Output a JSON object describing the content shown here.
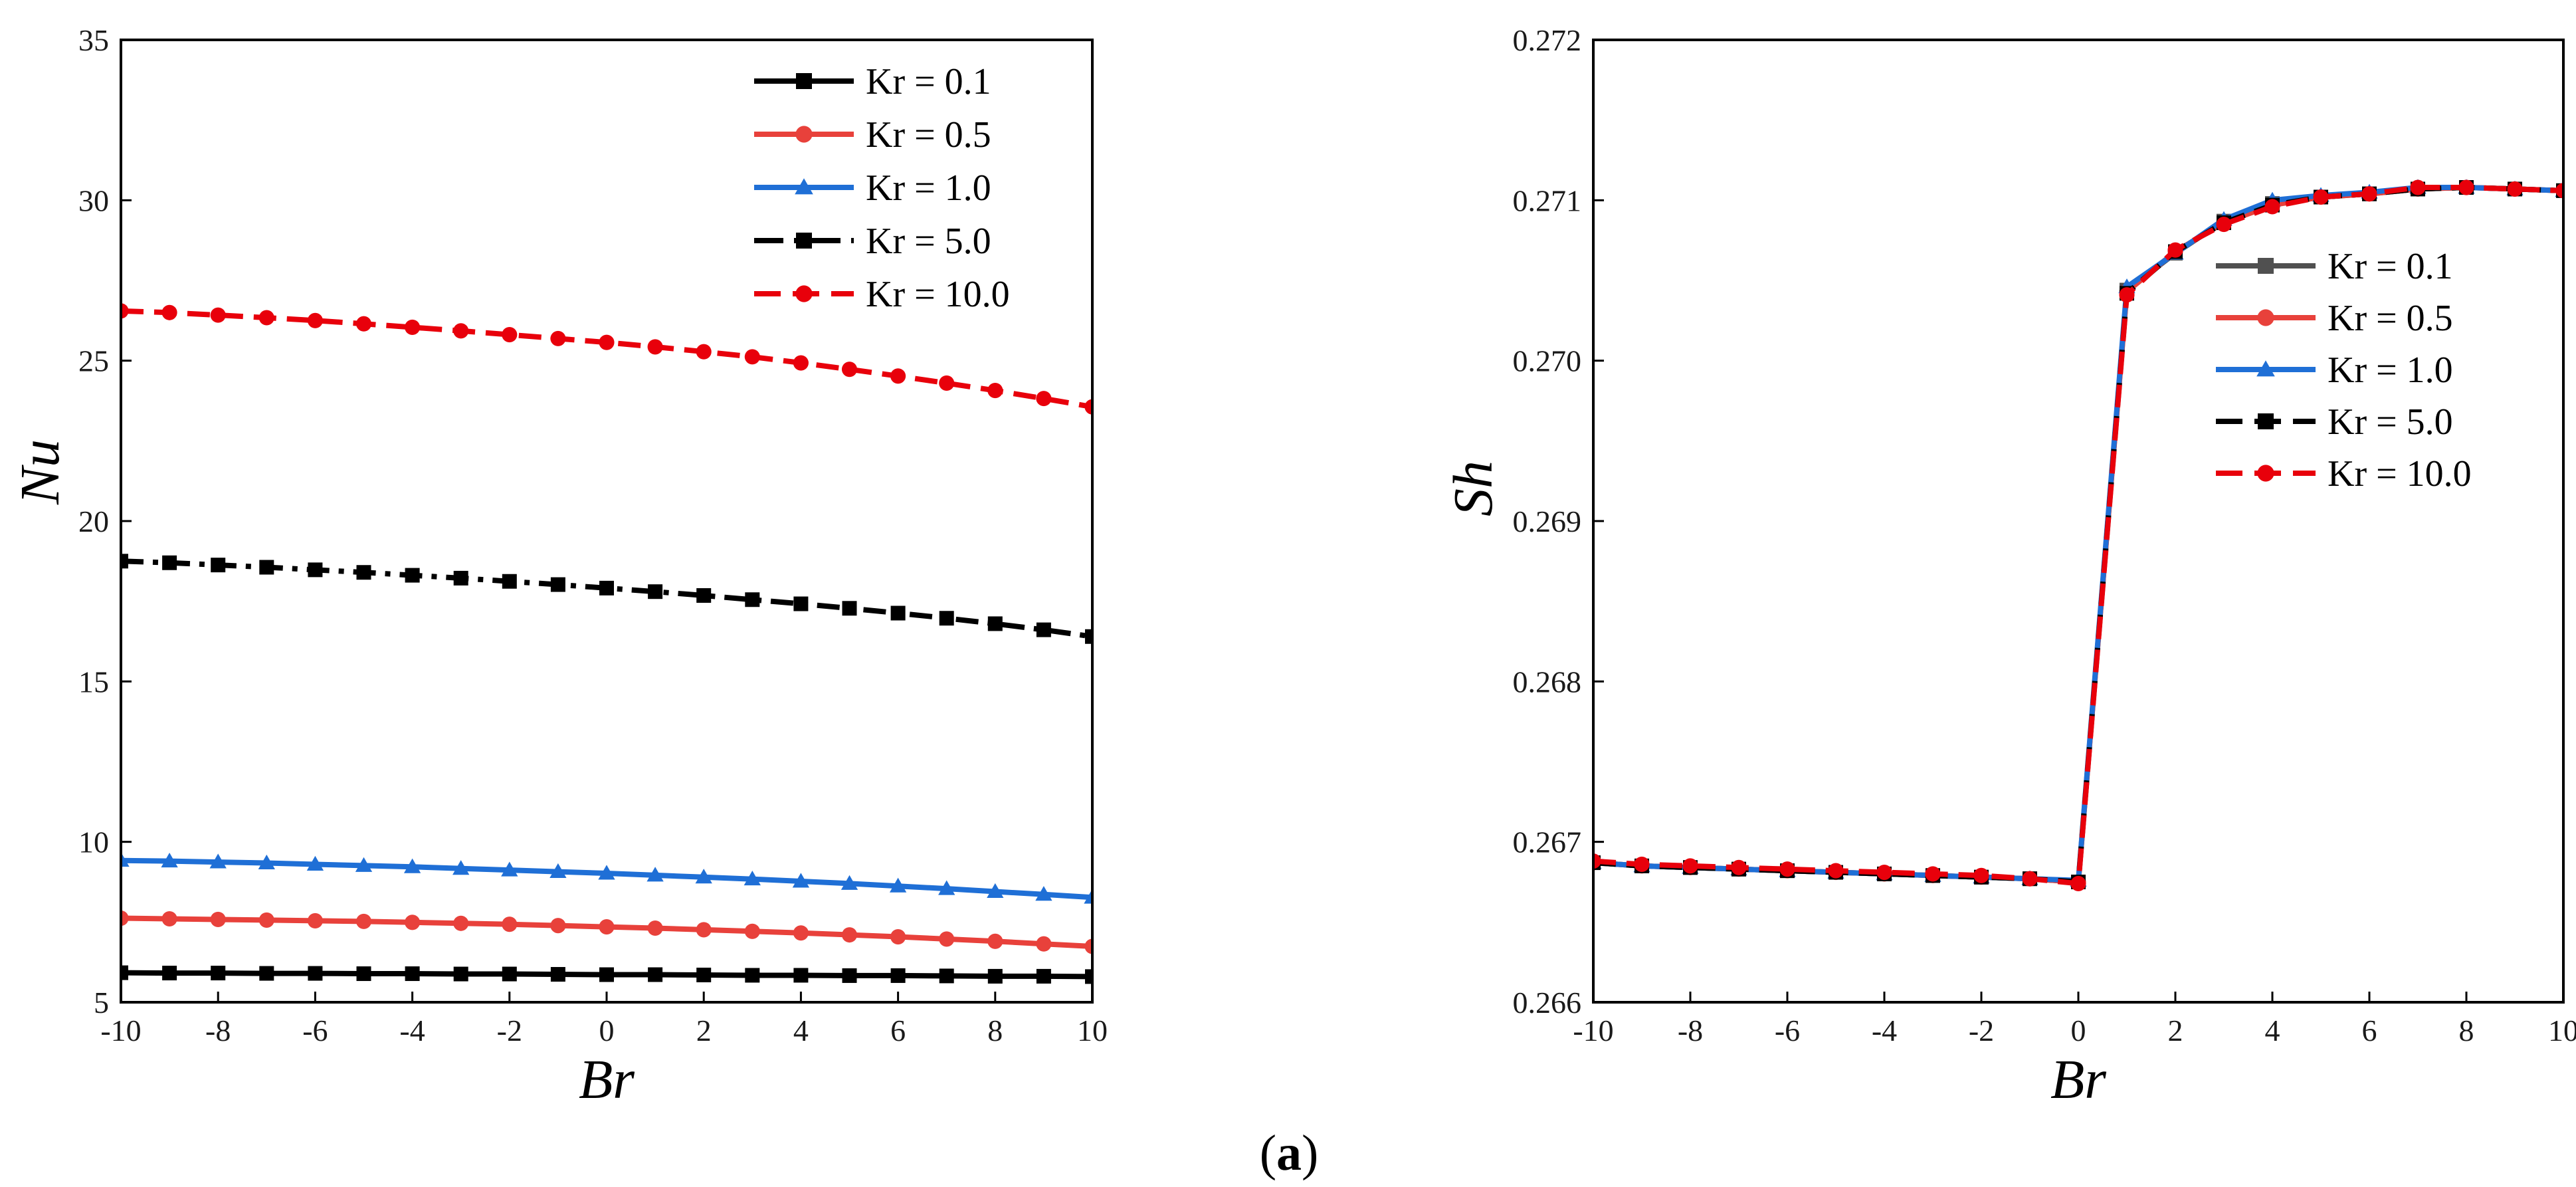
{
  "chart_data": [
    {
      "type": "line",
      "title": "",
      "xlabel": "Br",
      "ylabel": "Nu",
      "xlim": [
        -10,
        10
      ],
      "ylim": [
        5,
        35
      ],
      "xticks": [
        "-10",
        "-8",
        "-6",
        "-4",
        "-2",
        "0",
        "2",
        "4",
        "6",
        "8",
        "10"
      ],
      "yticks": [
        "5",
        "10",
        "15",
        "20",
        "25",
        "30",
        "35"
      ],
      "grid": false,
      "legend_position": "top-right",
      "x": [
        -10,
        -9,
        -8,
        -7,
        -6,
        -5,
        -4,
        -3,
        -2,
        -1,
        0,
        1,
        2,
        3,
        4,
        5,
        6,
        7,
        8,
        9,
        10
      ],
      "series": [
        {
          "name": "Kr = 0.1",
          "color": "#000000",
          "marker": "square",
          "dash": "solid",
          "values": [
            5.92,
            5.91,
            5.91,
            5.9,
            5.9,
            5.89,
            5.89,
            5.88,
            5.88,
            5.87,
            5.86,
            5.86,
            5.85,
            5.84,
            5.84,
            5.83,
            5.83,
            5.82,
            5.81,
            5.81,
            5.8
          ]
        },
        {
          "name": "Kr = 0.5",
          "color": "#e8413b",
          "marker": "circle",
          "dash": "solid",
          "values": [
            7.62,
            7.6,
            7.58,
            7.56,
            7.54,
            7.52,
            7.49,
            7.46,
            7.43,
            7.39,
            7.35,
            7.31,
            7.26,
            7.21,
            7.16,
            7.1,
            7.04,
            6.97,
            6.9,
            6.82,
            6.74
          ]
        },
        {
          "name": "Kr = 1.0",
          "color": "#1f6fd6",
          "marker": "triangle",
          "dash": "solid",
          "values": [
            9.42,
            9.4,
            9.37,
            9.34,
            9.3,
            9.26,
            9.22,
            9.17,
            9.12,
            9.07,
            9.02,
            8.96,
            8.9,
            8.84,
            8.77,
            8.7,
            8.62,
            8.54,
            8.45,
            8.36,
            8.27
          ]
        },
        {
          "name": "Kr = 5.0",
          "color": "#000000",
          "marker": "square",
          "dash": "dashdot",
          "values": [
            18.75,
            18.7,
            18.63,
            18.56,
            18.48,
            18.4,
            18.31,
            18.22,
            18.12,
            18.02,
            17.91,
            17.8,
            17.68,
            17.55,
            17.42,
            17.28,
            17.13,
            16.97,
            16.8,
            16.61,
            16.4
          ]
        },
        {
          "name": "Kr = 10.0",
          "color": "#e8000b",
          "marker": "circle",
          "dash": "dash",
          "values": [
            26.55,
            26.5,
            26.42,
            26.34,
            26.25,
            26.15,
            26.04,
            25.93,
            25.81,
            25.69,
            25.57,
            25.43,
            25.28,
            25.12,
            24.93,
            24.73,
            24.52,
            24.3,
            24.07,
            23.82,
            23.56
          ]
        }
      ]
    },
    {
      "type": "line",
      "title": "",
      "xlabel": "Br",
      "ylabel": "Sh",
      "xlim": [
        -10,
        10
      ],
      "ylim": [
        0.266,
        0.272
      ],
      "xticks": [
        "-10",
        "-8",
        "-6",
        "-4",
        "-2",
        "0",
        "2",
        "4",
        "6",
        "8",
        "10"
      ],
      "yticks": [
        "0.266",
        "0.267",
        "0.268",
        "0.269",
        "0.270",
        "0.271",
        "0.272"
      ],
      "grid": false,
      "legend_position": "right",
      "x": [
        -10,
        -9,
        -8,
        -7,
        -6,
        -5,
        -4,
        -3,
        -2,
        -1,
        0,
        1,
        2,
        3,
        4,
        5,
        6,
        7,
        8,
        9,
        10
      ],
      "series": [
        {
          "name": "Kr = 0.1",
          "color": "#505050",
          "marker": "square",
          "dash": "solid",
          "values": [
            0.26687,
            0.26685,
            0.26684,
            0.26683,
            0.26682,
            0.26681,
            0.2668,
            0.26679,
            0.26678,
            0.26677,
            0.26675,
            0.27044,
            0.27067,
            0.27087,
            0.27098,
            0.27102,
            0.27104,
            0.27107,
            0.27108,
            0.27107,
            0.27106
          ]
        },
        {
          "name": "Kr = 0.5",
          "color": "#e8413b",
          "marker": "circle",
          "dash": "solid",
          "values": [
            0.26687,
            0.26685,
            0.26684,
            0.26683,
            0.26682,
            0.26681,
            0.2668,
            0.26679,
            0.26678,
            0.26677,
            0.26675,
            0.27043,
            0.27068,
            0.27086,
            0.27097,
            0.27102,
            0.27104,
            0.27107,
            0.27108,
            0.27107,
            0.27106
          ]
        },
        {
          "name": "Kr = 1.0",
          "color": "#1f6fd6",
          "marker": "triangle",
          "dash": "solid",
          "values": [
            0.26687,
            0.26685,
            0.26684,
            0.26683,
            0.26682,
            0.26681,
            0.2668,
            0.26679,
            0.26678,
            0.26677,
            0.26676,
            0.27046,
            0.27067,
            0.27088,
            0.271,
            0.27103,
            0.27105,
            0.27108,
            0.27108,
            0.27107,
            0.27106
          ]
        },
        {
          "name": "Kr = 5.0",
          "color": "#000000",
          "marker": "square",
          "dash": "dash",
          "values": [
            0.26687,
            0.26685,
            0.26684,
            0.26683,
            0.26682,
            0.26681,
            0.2668,
            0.26679,
            0.26678,
            0.26677,
            0.26675,
            0.27042,
            0.27068,
            0.27086,
            0.27097,
            0.27102,
            0.27104,
            0.27107,
            0.27108,
            0.27107,
            0.27106
          ]
        },
        {
          "name": "Kr = 10.0",
          "color": "#e8000b",
          "marker": "circle",
          "dash": "dash",
          "values": [
            0.26688,
            0.26686,
            0.26685,
            0.26684,
            0.26683,
            0.26682,
            0.26681,
            0.2668,
            0.26679,
            0.26677,
            0.26674,
            0.27041,
            0.27069,
            0.27085,
            0.27096,
            0.27102,
            0.27104,
            0.27108,
            0.27108,
            0.27107,
            0.27106
          ]
        }
      ]
    }
  ],
  "caption": {
    "open_paren": "(",
    "letter": "a",
    "close_paren": ")"
  }
}
